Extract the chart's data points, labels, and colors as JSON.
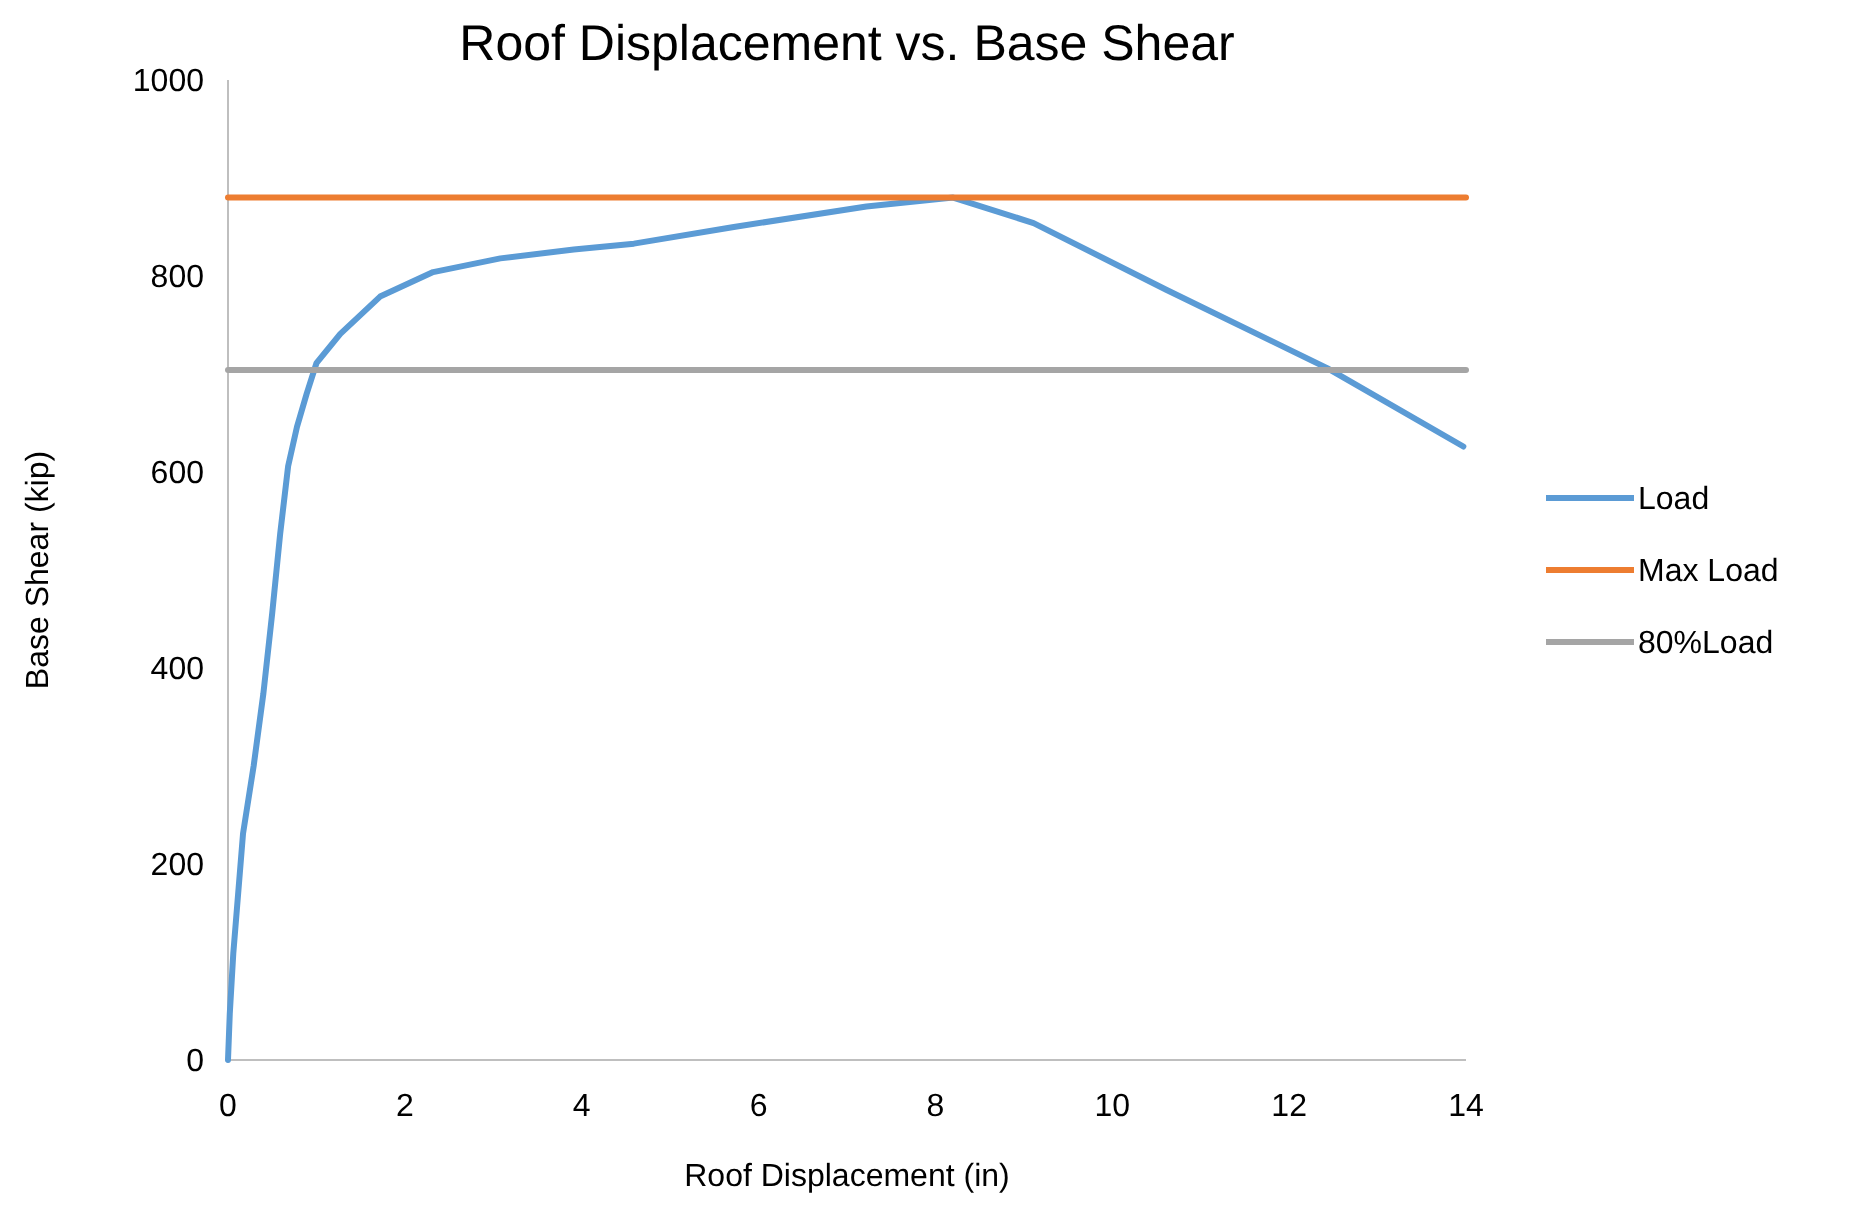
{
  "chart_data": {
    "type": "line",
    "title": "Roof Displacement vs. Base Shear",
    "xlabel": "Roof Displacement (in)",
    "ylabel": "Base Shear (kip)",
    "xlim": [
      0,
      14
    ],
    "xticks": [
      0,
      2,
      4,
      6,
      8,
      10,
      12,
      14
    ],
    "ylim": [
      0,
      1000
    ],
    "yticks": [
      0,
      200,
      400,
      600,
      800,
      1000
    ],
    "grid": false,
    "legend": "right",
    "marker": "none",
    "line_style": "solid",
    "series": [
      {
        "name": "Load",
        "color": "#5b9bd5",
        "x": [
          0,
          0.02,
          0.06,
          0.17,
          0.29,
          0.4,
          0.5,
          0.59,
          0.68,
          0.78,
          0.89,
          1.0,
          1.27,
          1.72,
          2.32,
          3.08,
          3.91,
          4.59,
          5.72,
          7.22,
          8.2,
          9.11,
          10.61,
          12.43,
          13.97
        ],
        "values": [
          0,
          47,
          109,
          231,
          300,
          374,
          456,
          537,
          606,
          646,
          680,
          711,
          741,
          779,
          804,
          818,
          827,
          833,
          850,
          871,
          880,
          854,
          786,
          706,
          626
        ]
      },
      {
        "name": "Max Load",
        "color": "#ed7d31",
        "x": [
          0,
          14
        ],
        "values": [
          880,
          880
        ]
      },
      {
        "name": "80%Load",
        "color": "#a5a5a5",
        "x": [
          0,
          14
        ],
        "values": [
          704,
          704
        ]
      }
    ]
  }
}
